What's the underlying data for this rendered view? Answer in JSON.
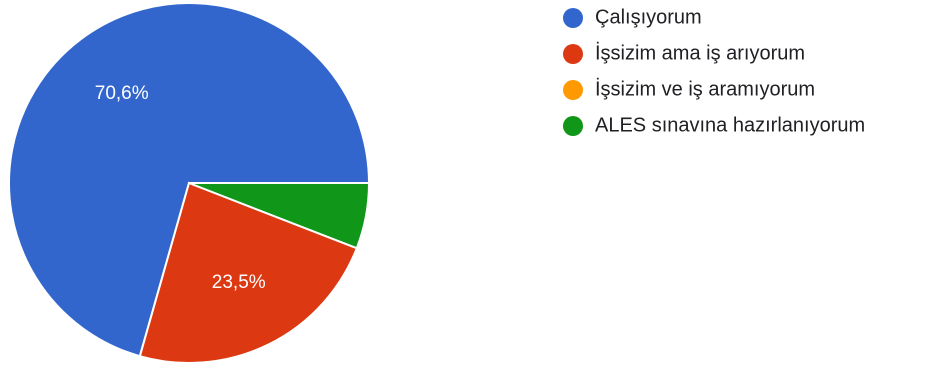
{
  "chart_data": {
    "type": "pie",
    "title": "",
    "slices": [
      {
        "label": "Çalışıyorum",
        "value": 70.6,
        "display": "70,6%",
        "color": "#3366cc"
      },
      {
        "label": "İşsizim ama iş arıyorum",
        "value": 23.5,
        "display": "23,5%",
        "color": "#dc3912"
      },
      {
        "label": "İşsizim ve iş aramıyorum",
        "value": 0,
        "display": "",
        "color": "#ff9900"
      },
      {
        "label": "ALES sınavına hazırlanıyorum",
        "value": 5.9,
        "display": "",
        "color": "#109618"
      }
    ],
    "legend_position": "right",
    "start_angle_deg": 0,
    "direction": "counterclockwise"
  }
}
